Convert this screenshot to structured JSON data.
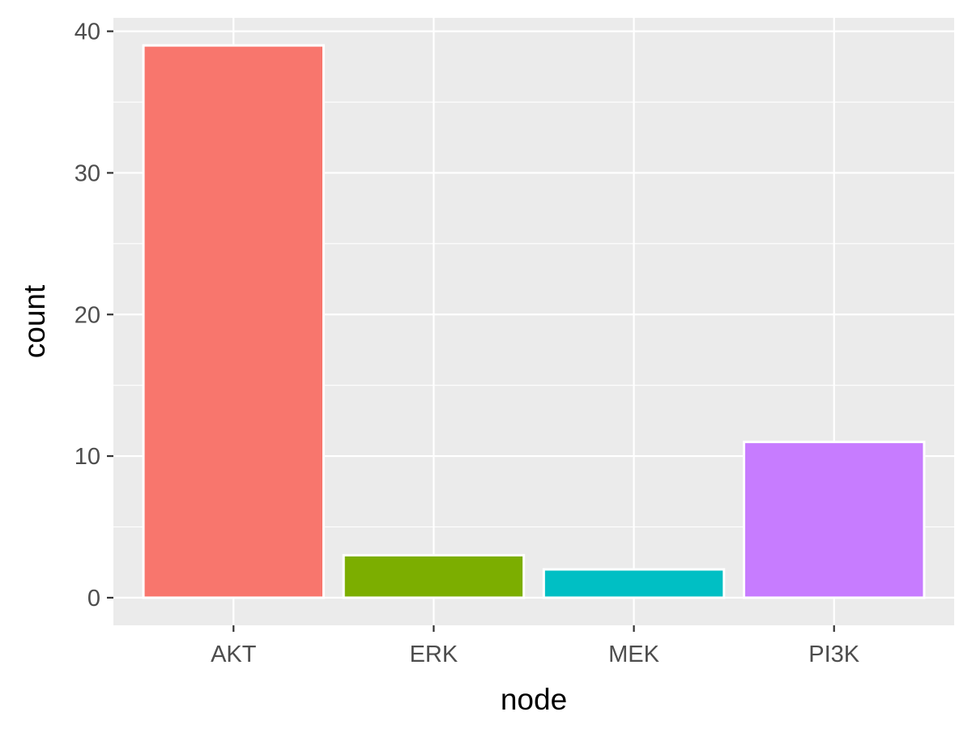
{
  "chart_data": {
    "type": "bar",
    "title": "",
    "xlabel": "node",
    "ylabel": "count",
    "categories": [
      "AKT",
      "ERK",
      "MEK",
      "PI3K"
    ],
    "values": [
      39,
      3,
      2,
      11
    ],
    "colors": [
      "#F8766D",
      "#7CAE00",
      "#00BFC4",
      "#C77CFF"
    ],
    "ylim": [
      -1.95,
      40.95
    ],
    "yticks": [
      0,
      10,
      20,
      30,
      40
    ],
    "grid": true,
    "legend": "none",
    "panel_background": "#EBEBEB",
    "gridline_color": "#FFFFFF"
  }
}
